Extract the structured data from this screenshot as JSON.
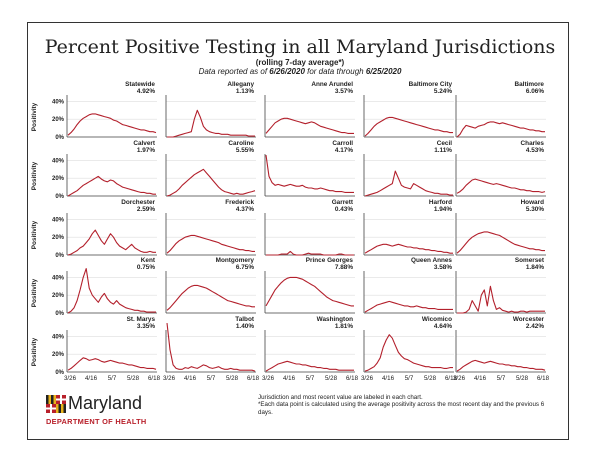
{
  "header": {
    "title": "Percent Positive Testing in all Maryland Jurisdictions",
    "subtitle": "(rolling 7-day average*)",
    "report_prefix": "Data reported as of ",
    "report_date": "6/26/2020",
    "report_mid": " for data through ",
    "data_through": "6/25/2020"
  },
  "footer": {
    "note1": "Jurisdiction and most recent value are labeled in each chart.",
    "note2": "*Each data point is calculated using the average positivity across the most recent day and the previous 6 days."
  },
  "logo": {
    "wordmark": "Maryland",
    "department": "DEPARTMENT OF HEALTH"
  },
  "colors": {
    "line": "#b3202c",
    "text": "#222222",
    "axis": "#444444"
  },
  "chart_data": {
    "type": "line",
    "layout": "small-multiples-5x5",
    "ylabel": "Positivity",
    "yticks": [
      "40%",
      "20%",
      "0%"
    ],
    "ylim": [
      0,
      45
    ],
    "x_tick_labels": [
      "3/26",
      "4/16",
      "5/7",
      "5/28",
      "6/18"
    ],
    "panels": [
      {
        "name": "Statewide",
        "latest": "4.92%",
        "values": [
          2,
          5,
          9,
          14,
          18,
          21,
          23,
          25,
          26,
          26,
          25,
          24,
          23,
          22,
          21,
          19,
          18,
          16,
          14,
          13,
          12,
          11,
          10,
          9,
          8,
          8,
          7,
          6,
          6,
          5
        ]
      },
      {
        "name": "Allegany",
        "latest": "1.13%",
        "values": [
          0,
          0,
          0,
          1,
          2,
          3,
          4,
          5,
          6,
          20,
          30,
          22,
          12,
          8,
          6,
          5,
          4,
          4,
          3,
          3,
          3,
          2,
          2,
          2,
          2,
          2,
          2,
          1,
          1,
          1
        ]
      },
      {
        "name": "Anne Arundel",
        "latest": "3.57%",
        "values": [
          4,
          8,
          12,
          16,
          18,
          20,
          21,
          21,
          20,
          19,
          18,
          17,
          16,
          15,
          16,
          17,
          16,
          14,
          12,
          11,
          10,
          9,
          8,
          7,
          6,
          5,
          5,
          4,
          4,
          4
        ]
      },
      {
        "name": "Baltimore City",
        "latest": "5.24%",
        "values": [
          1,
          4,
          8,
          12,
          15,
          17,
          19,
          21,
          22,
          22,
          21,
          20,
          19,
          18,
          17,
          16,
          15,
          14,
          13,
          12,
          11,
          10,
          9,
          8,
          8,
          7,
          6,
          6,
          5,
          5
        ]
      },
      {
        "name": "Baltimore",
        "latest": "6.06%",
        "values": [
          0,
          3,
          9,
          13,
          12,
          11,
          10,
          12,
          13,
          14,
          16,
          17,
          17,
          16,
          15,
          16,
          15,
          14,
          13,
          12,
          11,
          10,
          10,
          9,
          8,
          8,
          7,
          7,
          6,
          6
        ]
      },
      {
        "name": "Calvert",
        "latest": "1.97%",
        "values": [
          0,
          2,
          4,
          6,
          9,
          12,
          14,
          16,
          18,
          20,
          22,
          19,
          17,
          16,
          18,
          17,
          14,
          12,
          10,
          9,
          8,
          7,
          6,
          5,
          4,
          4,
          3,
          3,
          2,
          2
        ]
      },
      {
        "name": "Caroline",
        "latest": "5.55%",
        "values": [
          0,
          1,
          3,
          5,
          8,
          12,
          15,
          18,
          21,
          24,
          26,
          28,
          30,
          26,
          22,
          18,
          14,
          10,
          7,
          5,
          4,
          3,
          2,
          3,
          2,
          2,
          3,
          4,
          5,
          6
        ]
      },
      {
        "name": "Carroll",
        "latest": "4.17%",
        "values": [
          46,
          22,
          15,
          12,
          13,
          12,
          11,
          12,
          13,
          12,
          11,
          11,
          12,
          10,
          9,
          9,
          8,
          8,
          9,
          8,
          7,
          6,
          6,
          5,
          5,
          5,
          4,
          4,
          4,
          4
        ]
      },
      {
        "name": "Cecil",
        "latest": "1.11%",
        "values": [
          0,
          1,
          2,
          3,
          4,
          6,
          8,
          10,
          12,
          14,
          28,
          20,
          12,
          10,
          9,
          8,
          14,
          12,
          10,
          8,
          6,
          5,
          4,
          3,
          3,
          2,
          2,
          2,
          1,
          1
        ]
      },
      {
        "name": "Charles",
        "latest": "4.53%",
        "values": [
          3,
          5,
          8,
          12,
          15,
          18,
          19,
          18,
          17,
          16,
          15,
          14,
          13,
          14,
          13,
          12,
          11,
          10,
          9,
          9,
          8,
          7,
          7,
          6,
          6,
          5,
          5,
          5,
          4,
          5
        ]
      },
      {
        "name": "Dorchester",
        "latest": "2.59%",
        "values": [
          0,
          1,
          3,
          5,
          8,
          10,
          14,
          18,
          24,
          28,
          22,
          16,
          12,
          18,
          24,
          20,
          14,
          10,
          8,
          6,
          9,
          12,
          8,
          6,
          4,
          3,
          3,
          4,
          3,
          3
        ]
      },
      {
        "name": "Frederick",
        "latest": "4.37%",
        "values": [
          2,
          5,
          9,
          13,
          16,
          18,
          20,
          21,
          22,
          22,
          21,
          20,
          19,
          18,
          17,
          16,
          15,
          14,
          12,
          11,
          10,
          9,
          8,
          7,
          6,
          6,
          5,
          5,
          4,
          4
        ]
      },
      {
        "name": "Garrett",
        "latest": "0.43%",
        "values": [
          0,
          0,
          0,
          0,
          0,
          1,
          1,
          1,
          4,
          1,
          0,
          0,
          0,
          1,
          2,
          1,
          1,
          1,
          1,
          0,
          0,
          0,
          0,
          0,
          1,
          1,
          0,
          0,
          0,
          0
        ]
      },
      {
        "name": "Harford",
        "latest": "1.94%",
        "values": [
          2,
          4,
          6,
          8,
          10,
          11,
          12,
          12,
          11,
          10,
          11,
          12,
          11,
          10,
          9,
          9,
          8,
          8,
          7,
          7,
          6,
          6,
          5,
          5,
          4,
          4,
          3,
          3,
          2,
          2
        ]
      },
      {
        "name": "Howard",
        "latest": "5.30%",
        "values": [
          2,
          5,
          9,
          13,
          17,
          20,
          22,
          24,
          25,
          26,
          26,
          25,
          24,
          23,
          22,
          20,
          18,
          16,
          14,
          12,
          11,
          10,
          9,
          8,
          7,
          7,
          6,
          6,
          5,
          5
        ]
      },
      {
        "name": "Kent",
        "latest": "0.75%",
        "values": [
          0,
          2,
          6,
          14,
          26,
          40,
          50,
          28,
          20,
          16,
          12,
          18,
          22,
          16,
          12,
          10,
          14,
          10,
          8,
          6,
          5,
          4,
          3,
          3,
          2,
          2,
          1,
          1,
          1,
          1
        ]
      },
      {
        "name": "Montgomery",
        "latest": "6.75%",
        "values": [
          3,
          6,
          10,
          14,
          18,
          22,
          25,
          28,
          30,
          31,
          31,
          30,
          29,
          28,
          26,
          24,
          22,
          20,
          18,
          16,
          14,
          13,
          12,
          11,
          10,
          9,
          8,
          8,
          7,
          7
        ]
      },
      {
        "name": "Prince Georges",
        "latest": "7.88%",
        "values": [
          8,
          14,
          20,
          26,
          30,
          34,
          37,
          39,
          40,
          40,
          40,
          39,
          38,
          36,
          34,
          32,
          30,
          27,
          24,
          21,
          18,
          16,
          14,
          13,
          12,
          11,
          10,
          9,
          8,
          8
        ]
      },
      {
        "name": "Queen Annes",
        "latest": "3.58%",
        "values": [
          1,
          3,
          5,
          7,
          9,
          10,
          11,
          12,
          13,
          12,
          11,
          10,
          9,
          8,
          8,
          7,
          7,
          8,
          7,
          6,
          6,
          5,
          5,
          5,
          4,
          4,
          4,
          4,
          4,
          4
        ]
      },
      {
        "name": "Somerset",
        "latest": "1.84%",
        "values": [
          0,
          0,
          0,
          1,
          4,
          14,
          8,
          2,
          20,
          26,
          8,
          30,
          14,
          4,
          6,
          3,
          2,
          1,
          2,
          1,
          1,
          2,
          2,
          1,
          2,
          2,
          2,
          2,
          2,
          2
        ]
      },
      {
        "name": "St. Marys",
        "latest": "3.35%",
        "values": [
          2,
          4,
          7,
          10,
          13,
          16,
          15,
          13,
          14,
          15,
          14,
          12,
          11,
          12,
          13,
          12,
          11,
          10,
          10,
          9,
          8,
          8,
          7,
          6,
          5,
          5,
          4,
          4,
          4,
          3
        ]
      },
      {
        "name": "Talbot",
        "latest": "1.40%",
        "values": [
          65,
          25,
          8,
          4,
          3,
          3,
          5,
          4,
          6,
          5,
          4,
          6,
          8,
          7,
          5,
          4,
          5,
          6,
          4,
          3,
          3,
          4,
          3,
          3,
          2,
          2,
          2,
          2,
          2,
          1
        ]
      },
      {
        "name": "Washington",
        "latest": "1.81%",
        "values": [
          1,
          3,
          5,
          7,
          9,
          10,
          11,
          12,
          11,
          10,
          9,
          9,
          8,
          8,
          7,
          6,
          6,
          5,
          5,
          4,
          4,
          3,
          3,
          3,
          2,
          2,
          2,
          2,
          2,
          2
        ]
      },
      {
        "name": "Wicomico",
        "latest": "4.64%",
        "values": [
          1,
          2,
          4,
          6,
          10,
          16,
          28,
          36,
          42,
          38,
          30,
          22,
          18,
          15,
          14,
          12,
          10,
          9,
          8,
          7,
          6,
          6,
          5,
          5,
          5,
          5,
          4,
          4,
          5,
          5
        ]
      },
      {
        "name": "Worcester",
        "latest": "2.42%",
        "values": [
          1,
          3,
          6,
          8,
          10,
          12,
          13,
          12,
          11,
          10,
          11,
          12,
          11,
          10,
          9,
          9,
          8,
          8,
          7,
          7,
          6,
          6,
          5,
          5,
          4,
          4,
          3,
          3,
          3,
          2
        ]
      }
    ]
  }
}
